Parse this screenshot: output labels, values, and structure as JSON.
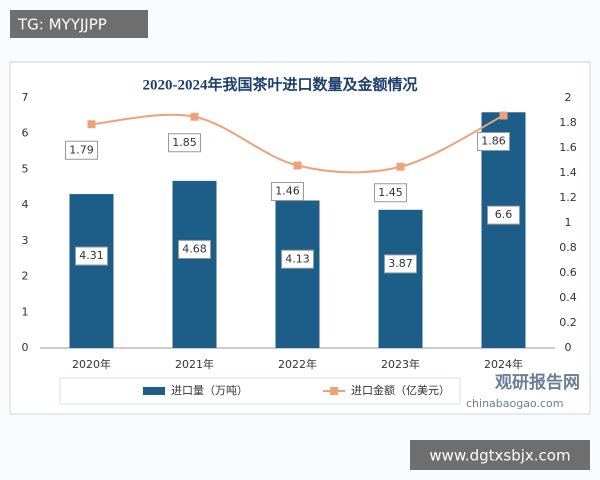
{
  "chart_data": {
    "type": "bar-line",
    "title": "2020-2024年我国茶叶进口数量及金额情况",
    "categories": [
      "2020年",
      "2021年",
      "2022年",
      "2023年",
      "2024年"
    ],
    "series": [
      {
        "name": "进口量（万吨）",
        "type": "bar",
        "color": "#1d5e88",
        "values": [
          4.31,
          4.68,
          4.13,
          3.87,
          6.6
        ]
      },
      {
        "name": "进口金额（亿美元）",
        "type": "line",
        "color": "#eea27a",
        "axis": "y2",
        "values": [
          1.79,
          1.85,
          1.46,
          1.45,
          1.86
        ]
      }
    ],
    "ylim": [
      0,
      7
    ],
    "yticks": [
      0,
      1,
      2,
      3,
      4,
      5,
      6,
      7
    ],
    "y2lim": [
      0,
      2
    ],
    "y2ticks": [
      0,
      0.2,
      0.4,
      0.6,
      0.8,
      1,
      1.2,
      1.4,
      1.6,
      1.8,
      2
    ],
    "legend": "bottom",
    "grid": false
  },
  "watermarks": [
    "TG: MYYJJPP",
    "观研报告网",
    "chinabaogao.com",
    "www.dgtxsbjx.com"
  ]
}
